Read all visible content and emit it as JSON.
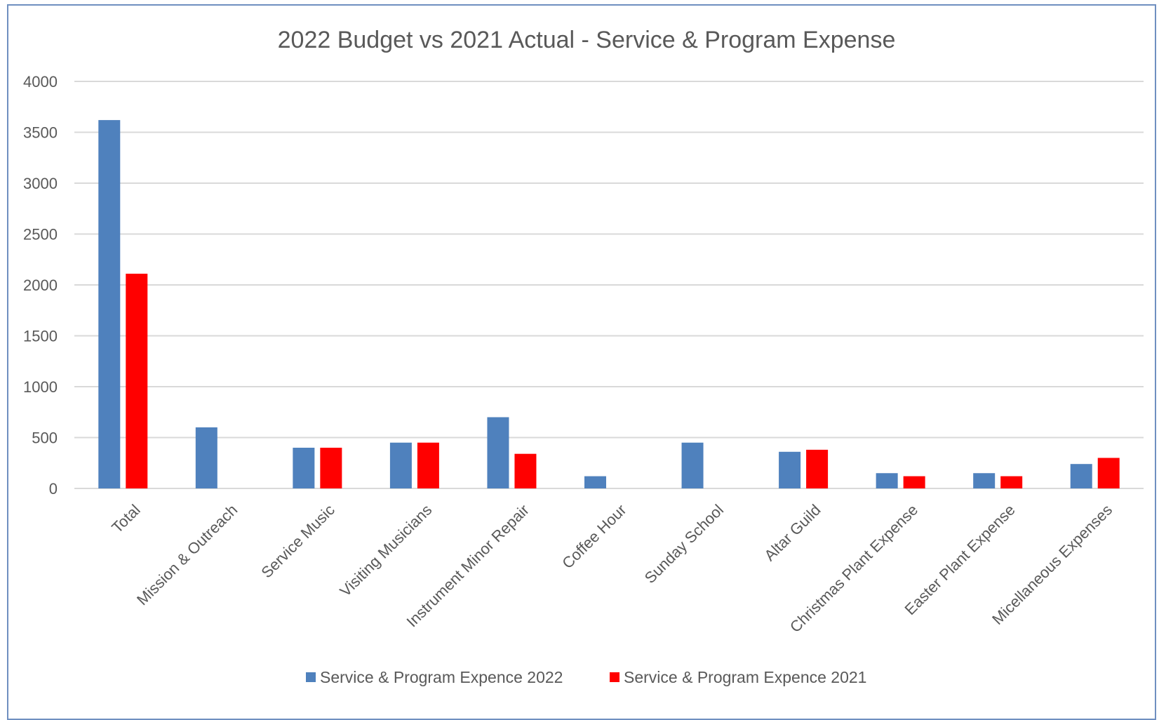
{
  "chart_data": {
    "type": "bar",
    "title": "2022 Budget vs 2021 Actual - Service & Program Expense",
    "xlabel": "",
    "ylabel": "",
    "ylim": [
      0,
      4000
    ],
    "yticks": [
      0,
      500,
      1000,
      1500,
      2000,
      2500,
      3000,
      3500,
      4000
    ],
    "grid": true,
    "legend_position": "bottom",
    "categories": [
      "Total",
      "Mission & Outreach",
      "Service Music",
      "Visiting Musicians",
      "Instrument Minor Repair",
      "Coffee Hour",
      "Sunday School",
      "Altar Guild",
      "Christmas Plant Expense",
      "Easter Plant Expense",
      "Micellaneous Expenses"
    ],
    "series": [
      {
        "name": "Service & Program Expence 2022",
        "color": "#4f81bd",
        "values": [
          3620,
          600,
          400,
          450,
          700,
          120,
          450,
          360,
          150,
          150,
          240
        ]
      },
      {
        "name": "Service & Program Expence 2021",
        "color": "#ff0000",
        "values": [
          2110,
          0,
          400,
          450,
          340,
          0,
          0,
          380,
          120,
          120,
          300
        ]
      }
    ]
  }
}
